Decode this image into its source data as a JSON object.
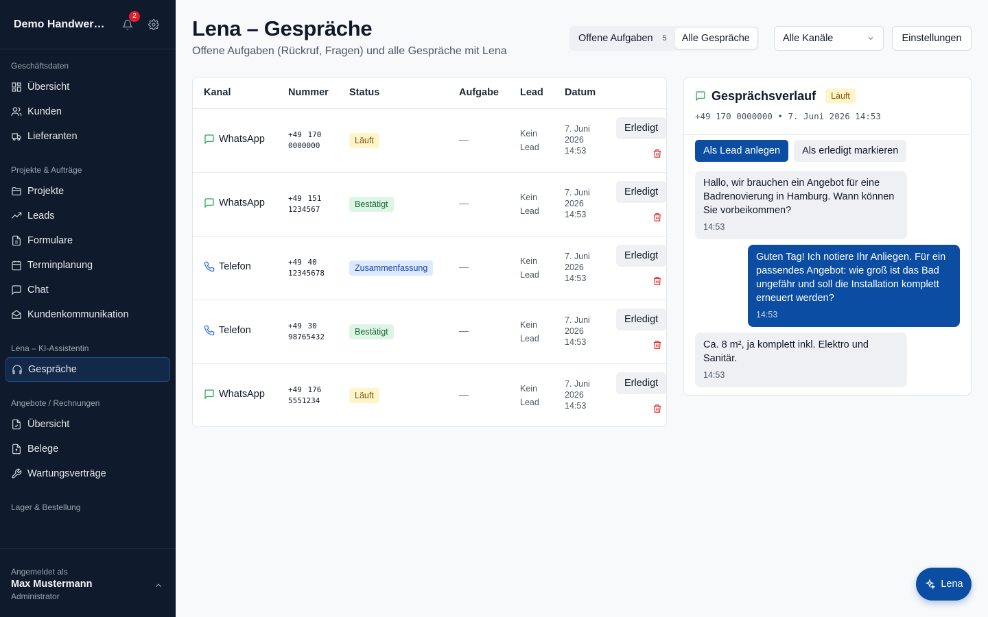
{
  "sidebar": {
    "company": "Demo Handwerksbetrieb",
    "notif_count": "2",
    "sections": [
      {
        "title": "Geschäftsdaten",
        "items": [
          {
            "label": "Übersicht",
            "icon": "dashboard-icon"
          },
          {
            "label": "Kunden",
            "icon": "users-icon"
          },
          {
            "label": "Lieferanten",
            "icon": "truck-icon"
          }
        ]
      },
      {
        "title": "Projekte & Aufträge",
        "items": [
          {
            "label": "Projekte",
            "icon": "folder-icon"
          },
          {
            "label": "Leads",
            "icon": "trending-icon"
          },
          {
            "label": "Formulare",
            "icon": "file-icon"
          },
          {
            "label": "Terminplanung",
            "icon": "calendar-icon"
          },
          {
            "label": "Chat",
            "icon": "chat-icon"
          },
          {
            "label": "Kundenkommunikation",
            "icon": "mail-icon"
          }
        ]
      },
      {
        "title": "Lena – KI-Assistentin",
        "items": [
          {
            "label": "Gespräche",
            "icon": "headset-icon",
            "active": true
          }
        ]
      },
      {
        "title": "Angebote / Rechnungen",
        "items": [
          {
            "label": "Übersicht",
            "icon": "file-check-icon"
          },
          {
            "label": "Belege",
            "icon": "receipt-icon"
          },
          {
            "label": "Wartungsverträge",
            "icon": "wrench-icon"
          }
        ]
      },
      {
        "title": "Lager & Bestellung",
        "items": []
      }
    ],
    "footer": {
      "label": "Angemeldet als",
      "name": "Max Mustermann",
      "role": "Administrator"
    }
  },
  "header": {
    "title": "Lena – Gespräche",
    "subtitle": "Offene Aufgaben (Rückruf, Fragen) und alle Gespräche mit Lena",
    "tab_open": "Offene Aufgaben",
    "tab_open_count": "5",
    "tab_all": "Alle Gespräche",
    "channel_select": "Alle Kanäle",
    "settings": "Einstellungen"
  },
  "table": {
    "columns": {
      "kanal": "Kanal",
      "nummer": "Nummer",
      "status": "Status",
      "aufgabe": "Aufgabe",
      "lead": "Lead",
      "datum": "Datum"
    },
    "done_label": "Erledigt",
    "rows": [
      {
        "kanal": "WhatsApp",
        "channel": "whatsapp",
        "nummer": "+49 170 0000000",
        "status": "Läuft",
        "status_type": "laeuft",
        "aufgabe": "—",
        "lead": "Kein Lead",
        "datum": "7. Juni 2026 14:53"
      },
      {
        "kanal": "WhatsApp",
        "channel": "whatsapp",
        "nummer": "+49 151 1234567",
        "status": "Bestätigt",
        "status_type": "bestaetigt",
        "aufgabe": "—",
        "lead": "Kein Lead",
        "datum": "7. Juni 2026 14:53"
      },
      {
        "kanal": "Telefon",
        "channel": "phone",
        "nummer": "+49 40 12345678",
        "status": "Zusammenfassung",
        "status_type": "zus",
        "aufgabe": "—",
        "lead": "Kein Lead",
        "datum": "7. Juni 2026 14:53"
      },
      {
        "kanal": "Telefon",
        "channel": "phone",
        "nummer": "+49 30 98765432",
        "status": "Bestätigt",
        "status_type": "bestaetigt",
        "aufgabe": "—",
        "lead": "Kein Lead",
        "datum": "7. Juni 2026 14:53"
      },
      {
        "kanal": "WhatsApp",
        "channel": "whatsapp",
        "nummer": "+49 176 5551234",
        "status": "Läuft",
        "status_type": "laeuft",
        "aufgabe": "—",
        "lead": "Kein Lead",
        "datum": "7. Juni 2026 14:53"
      }
    ]
  },
  "detail": {
    "title": "Gesprächsverlauf",
    "badge": "Läuft",
    "meta": "+49 170 0000000 • 7. Juni 2026 14:53",
    "btn_lead": "Als Lead anlegen",
    "btn_done": "Als erledigt markieren",
    "messages": [
      {
        "dir": "in",
        "text": "Hallo, wir brauchen ein Angebot für eine Badrenovierung in Hamburg. Wann können Sie vorbeikommen?",
        "time": "14:53"
      },
      {
        "dir": "out",
        "text": "Guten Tag! Ich notiere Ihr Anliegen. Für ein passendes Angebot: wie groß ist das Bad ungefähr und soll die Installation komplett erneuert werden?",
        "time": "14:53"
      },
      {
        "dir": "in",
        "text": "Ca. 8 m², ja komplett inkl. Elektro und Sanitär.",
        "time": "14:53"
      }
    ]
  },
  "fab": {
    "label": "Lena"
  },
  "colors": {
    "accent": "#0b4da2",
    "sidebar_bg": "#0f1b2d",
    "whatsapp": "#16a34a",
    "phone": "#2563eb",
    "danger": "#dc2626"
  }
}
